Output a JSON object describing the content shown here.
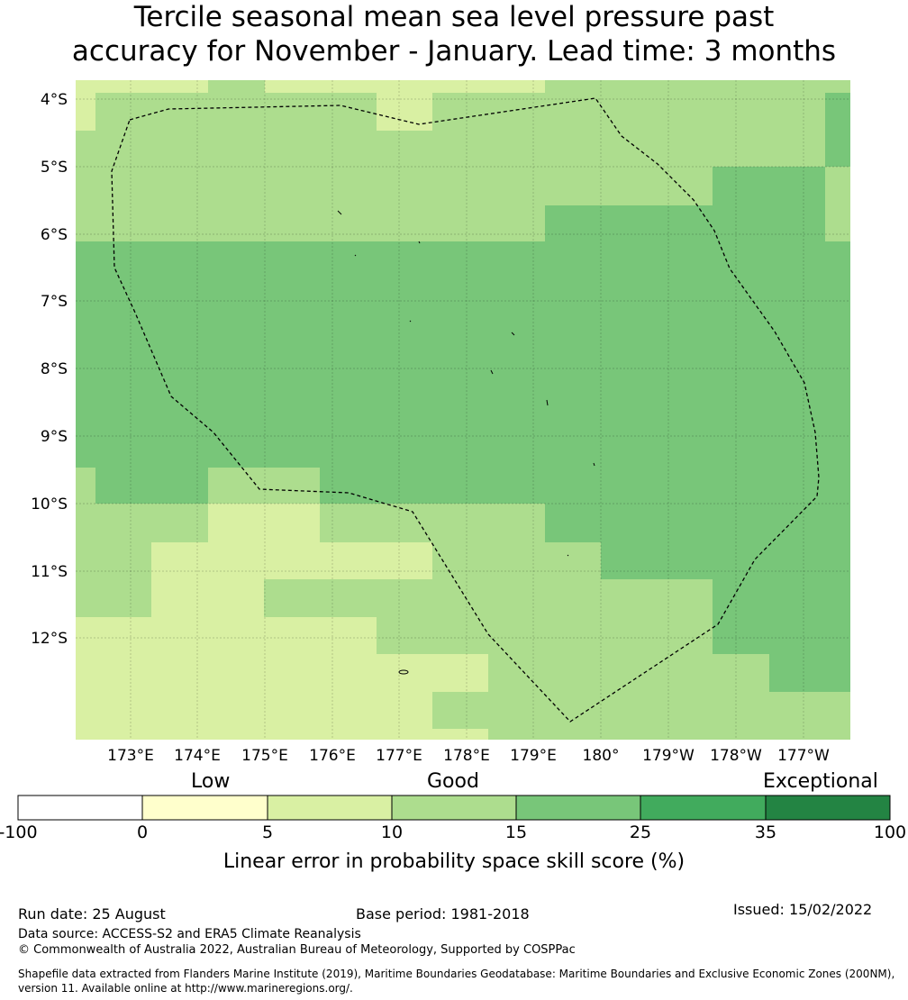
{
  "title_line1": "Tercile seasonal mean sea level pressure past",
  "title_line2": "accuracy for November - January. Lead time: 3 months",
  "map": {
    "lat_labels": [
      "4°S",
      "5°S",
      "6°S",
      "7°S",
      "8°S",
      "9°S",
      "10°S",
      "11°S",
      "12°S"
    ],
    "lon_labels": [
      "173°E",
      "174°E",
      "175°E",
      "176°E",
      "177°E",
      "178°E",
      "179°E",
      "180°",
      "179°W",
      "178°W",
      "177°W"
    ],
    "boundary_style": "dashed",
    "colors": {
      "c0_5": "#ffffcc",
      "c5_10": "#d9f0a3",
      "c10_15": "#addd8e",
      "c15_25": "#78c679",
      "c25_35": "#41ab5d",
      "c35_100": "#238443"
    }
  },
  "colorbar": {
    "categories": [
      "Low",
      "Good",
      "Exceptional"
    ],
    "ticks": [
      "-100",
      "0",
      "5",
      "10",
      "15",
      "25",
      "35",
      "100"
    ],
    "bins": [
      {
        "from": -100,
        "to": 0,
        "color": "#ffffff"
      },
      {
        "from": 0,
        "to": 5,
        "color": "#ffffcc"
      },
      {
        "from": 5,
        "to": 10,
        "color": "#d9f0a3"
      },
      {
        "from": 10,
        "to": 15,
        "color": "#addd8e"
      },
      {
        "from": 15,
        "to": 25,
        "color": "#78c679"
      },
      {
        "from": 25,
        "to": 35,
        "color": "#41ab5d"
      },
      {
        "from": 35,
        "to": 100,
        "color": "#238443"
      }
    ],
    "label": "Linear error in probability space skill score (%)"
  },
  "footer": {
    "run_date": "Run date: 25 August",
    "base_period": "Base period: 1981-2018",
    "issued": "Issued: 15/02/2022",
    "data_source": "Data source: ACCESS-S2 and ERA5 Climate Reanalysis",
    "copyright": "© Commonwealth of Australia 2022, Australian Bureau of Meteorology, Supported by COSPPac",
    "shapefile_line1": "Shapefile data extracted from Flanders Marine Institute (2019), Maritime Boundaries Geodatabase: Maritime Boundaries and Exclusive Economic Zones (200NM),",
    "shapefile_line2": "version 11. Available online at http://www.marineregions.org/."
  }
}
